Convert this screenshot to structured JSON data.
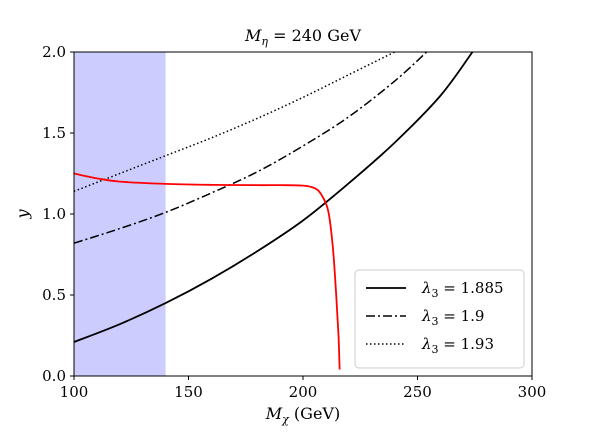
{
  "chart_data": {
    "type": "line",
    "title": "Mη = 240 GeV",
    "xlabel": "Mχ (GeV)",
    "ylabel": "y",
    "xlim": [
      100,
      300
    ],
    "ylim": [
      0.0,
      2.0
    ],
    "xticks": [
      "100",
      "150",
      "200",
      "250",
      "300"
    ],
    "yticks": [
      "0.0",
      "0.5",
      "1.0",
      "1.5",
      "2.0"
    ],
    "grid": false,
    "legend_position": "lower-right",
    "shaded_region": {
      "x": [
        100,
        140
      ],
      "color": "#ccccff"
    },
    "series": [
      {
        "name": "λ3 = 1.885",
        "style": "solid",
        "color": "#000000",
        "x": [
          100,
          120,
          140,
          160,
          180,
          200,
          220,
          240,
          260,
          274
        ],
        "y": [
          0.21,
          0.32,
          0.45,
          0.6,
          0.77,
          0.96,
          1.19,
          1.44,
          1.73,
          2.0
        ]
      },
      {
        "name": "λ3 = 1.9",
        "style": "dashdot",
        "color": "#000000",
        "x": [
          100,
          120,
          140,
          160,
          180,
          200,
          220,
          240,
          254
        ],
        "y": [
          0.82,
          0.91,
          1.01,
          1.13,
          1.26,
          1.42,
          1.6,
          1.82,
          2.0
        ]
      },
      {
        "name": "λ3 = 1.93",
        "style": "dotted",
        "color": "#000000",
        "x": [
          100,
          120,
          140,
          160,
          180,
          200,
          220,
          240
        ],
        "y": [
          1.14,
          1.25,
          1.36,
          1.47,
          1.59,
          1.72,
          1.86,
          2.0
        ]
      },
      {
        "name": "",
        "style": "solid",
        "color": "#ff0000",
        "x": [
          100,
          110,
          120,
          140,
          160,
          180,
          190,
          200,
          205,
          208,
          211,
          213,
          214.5,
          215.5,
          216
        ],
        "y": [
          1.25,
          1.22,
          1.2,
          1.186,
          1.18,
          1.178,
          1.178,
          1.175,
          1.16,
          1.12,
          1.02,
          0.8,
          0.5,
          0.25,
          0.04
        ]
      }
    ]
  },
  "title_parts": {
    "symbol": "M",
    "sub": "η",
    "rest": " = 240 GeV"
  },
  "xlabel_parts": {
    "symbol": "M",
    "sub": "χ",
    "rest": " (GeV)"
  },
  "ylabel_text": "y",
  "legend_entries": [
    {
      "symbol": "λ",
      "sub": "3",
      "rest": " = 1.885"
    },
    {
      "symbol": "λ",
      "sub": "3",
      "rest": " = 1.9"
    },
    {
      "symbol": "λ",
      "sub": "3",
      "rest": " = 1.93"
    }
  ]
}
